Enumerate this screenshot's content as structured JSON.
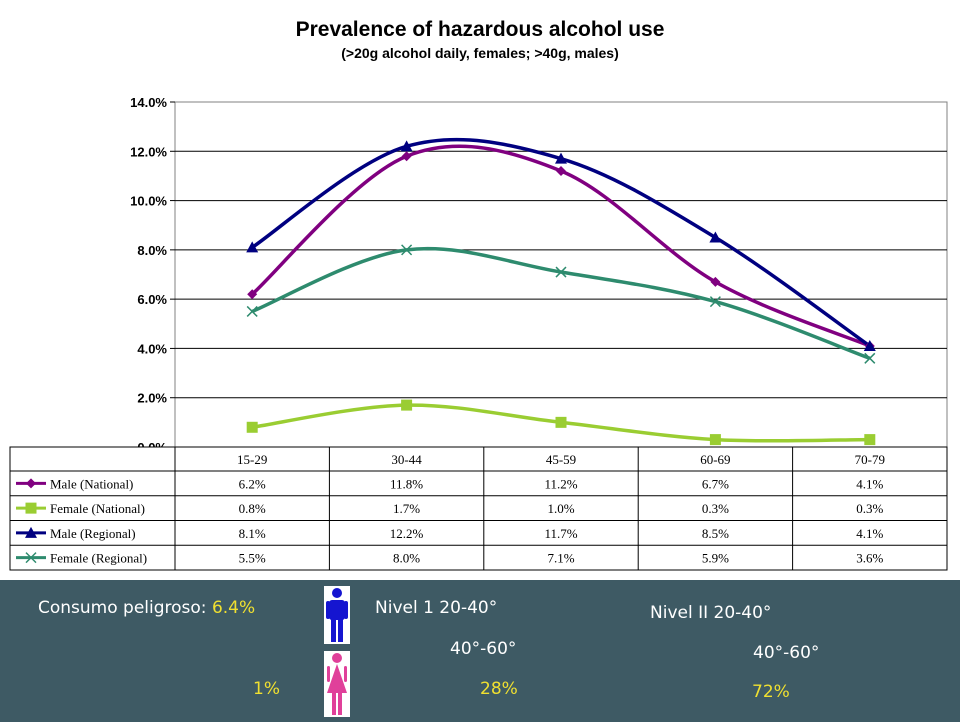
{
  "chart_data": {
    "type": "line",
    "title": "Prevalence of hazardous alcohol use",
    "subtitle": "(>20g alcohol daily, females; >40g, males)",
    "categories": [
      "15-29",
      "30-44",
      "45-59",
      "60-69",
      "70-79"
    ],
    "ylim": [
      0,
      14
    ],
    "y_ticks": [
      "0.0%",
      "2.0%",
      "4.0%",
      "6.0%",
      "8.0%",
      "10.0%",
      "12.0%",
      "14.0%"
    ],
    "grid": true,
    "legend_position": "data table below chart",
    "series": [
      {
        "name": "Male (National)",
        "values": [
          6.2,
          11.8,
          11.2,
          6.7,
          4.1
        ],
        "labels": [
          "6.2%",
          "11.8%",
          "11.2%",
          "6.7%",
          "4.1%"
        ],
        "color": "#800080",
        "marker": "diamond"
      },
      {
        "name": "Female (National)",
        "values": [
          0.8,
          1.7,
          1.0,
          0.3,
          0.3
        ],
        "labels": [
          "0.8%",
          "1.7%",
          "1.0%",
          "0.3%",
          "0.3%"
        ],
        "color": "#9acd32",
        "marker": "square"
      },
      {
        "name": "Male (Regional)",
        "values": [
          8.1,
          12.2,
          11.7,
          8.5,
          4.1
        ],
        "labels": [
          "8.1%",
          "12.2%",
          "11.7%",
          "8.5%",
          "4.1%"
        ],
        "color": "#000080",
        "marker": "triangle"
      },
      {
        "name": "Female (Regional)",
        "values": [
          5.5,
          8.0,
          7.1,
          5.9,
          3.6
        ],
        "labels": [
          "5.5%",
          "8.0%",
          "7.1%",
          "5.9%",
          "3.6%"
        ],
        "color": "#2e8b6e",
        "marker": "x"
      }
    ]
  },
  "footer": {
    "consumo_label": "Consumo peligroso:",
    "consumo_value": "6.4%",
    "nivel1_title": "Nivel 1 20-40°",
    "nivel1_range": "40°-60°",
    "nivel1_value": "28%",
    "female_value": "1%",
    "nivel2_title": "Nivel II 20-40°",
    "nivel2_range": "40°-60°",
    "nivel2_value": "72%",
    "male_icon": "male-person-icon",
    "female_icon": "female-person-icon",
    "male_icon_color": "#1515d0",
    "female_icon_color": "#e0409a"
  }
}
